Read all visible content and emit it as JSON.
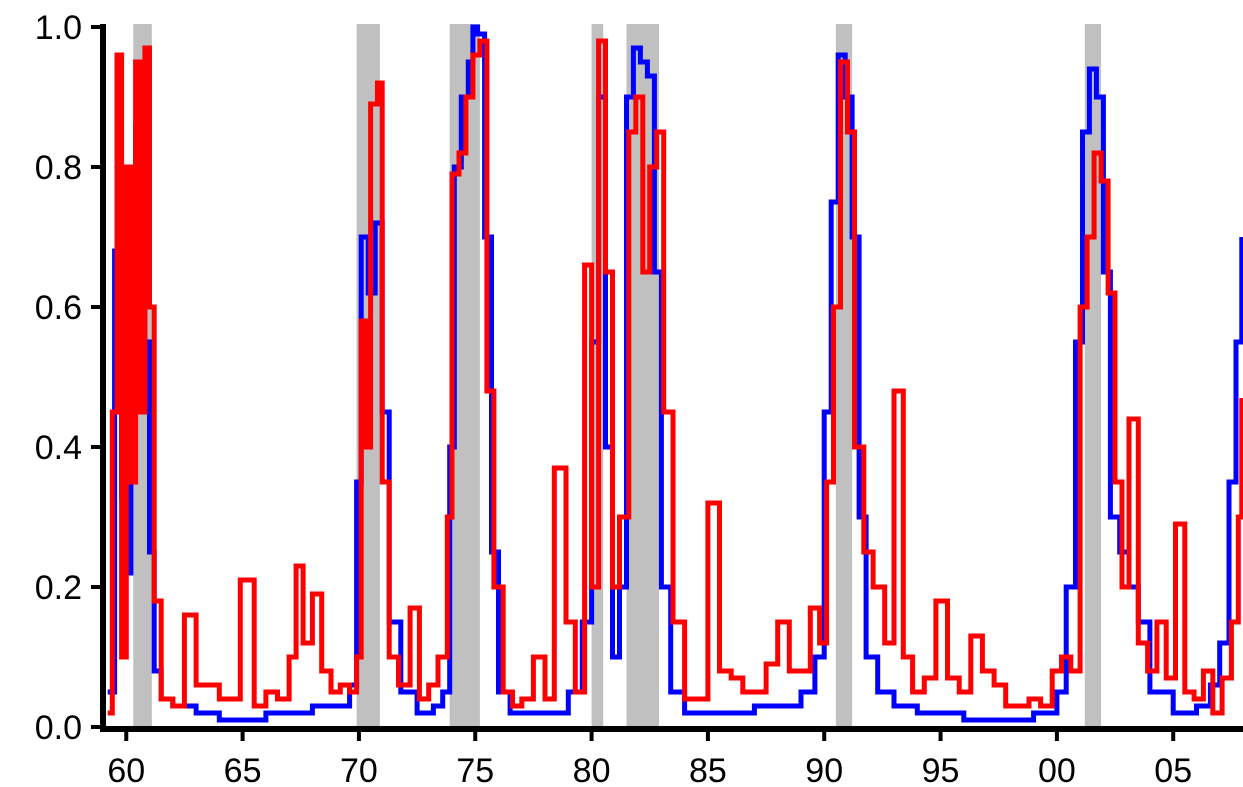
{
  "chart_data": {
    "type": "line",
    "title": "",
    "xlabel": "",
    "ylabel": "",
    "xlim": [
      1959,
      2008
    ],
    "ylim": [
      0,
      1.0
    ],
    "grid": false,
    "legend": "none",
    "x_ticks": [
      {
        "value": 1960,
        "label": "60"
      },
      {
        "value": 1965,
        "label": "65"
      },
      {
        "value": 1970,
        "label": "70"
      },
      {
        "value": 1975,
        "label": "75"
      },
      {
        "value": 1980,
        "label": "80"
      },
      {
        "value": 1985,
        "label": "85"
      },
      {
        "value": 1990,
        "label": "90"
      },
      {
        "value": 1995,
        "label": "95"
      },
      {
        "value": 2000,
        "label": "00"
      },
      {
        "value": 2005,
        "label": "05"
      }
    ],
    "y_ticks": [
      {
        "value": 0.0,
        "label": "0.0"
      },
      {
        "value": 0.2,
        "label": "0.2"
      },
      {
        "value": 0.4,
        "label": "0.4"
      },
      {
        "value": 0.6,
        "label": "0.6"
      },
      {
        "value": 0.8,
        "label": "0.8"
      },
      {
        "value": 1.0,
        "label": "1.0"
      }
    ],
    "shaded_periods": [
      {
        "start": 1960.3,
        "end": 1961.1
      },
      {
        "start": 1969.9,
        "end": 1970.9
      },
      {
        "start": 1973.9,
        "end": 1975.2
      },
      {
        "start": 1980.0,
        "end": 1980.5
      },
      {
        "start": 1981.5,
        "end": 1982.9
      },
      {
        "start": 1990.5,
        "end": 1991.2
      },
      {
        "start": 2001.2,
        "end": 2001.9
      }
    ],
    "series": [
      {
        "color": "#0000ff",
        "x": [
          1959.2,
          1959.5,
          1959.8,
          1960.0,
          1960.2,
          1960.4,
          1960.6,
          1960.8,
          1961.0,
          1961.2,
          1961.5,
          1962,
          1963,
          1964,
          1965,
          1966,
          1967,
          1968,
          1969,
          1969.6,
          1969.9,
          1970.1,
          1970.4,
          1970.7,
          1971.0,
          1971.3,
          1971.8,
          1972.5,
          1973.2,
          1973.6,
          1973.9,
          1974.1,
          1974.4,
          1974.7,
          1974.9,
          1975.1,
          1975.4,
          1975.7,
          1976.0,
          1976.5,
          1977,
          1978,
          1979,
          1979.6,
          1980.0,
          1980.3,
          1980.6,
          1980.9,
          1981.2,
          1981.5,
          1981.8,
          1982.1,
          1982.4,
          1982.7,
          1983.0,
          1983.4,
          1984,
          1985,
          1986,
          1987,
          1988,
          1989,
          1989.6,
          1990.0,
          1990.3,
          1990.6,
          1990.9,
          1991.2,
          1991.5,
          1991.8,
          1992.3,
          1993,
          1994,
          1995,
          1996,
          1997,
          1998,
          1999,
          2000,
          2000.4,
          2000.8,
          2001.1,
          2001.4,
          2001.7,
          2002.0,
          2002.3,
          2002.7,
          2003.1,
          2003.5,
          2004,
          2005,
          2006,
          2006.6,
          2007,
          2007.4,
          2007.7,
          2007.95
        ],
        "values": [
          0.05,
          0.68,
          0.33,
          0.22,
          0.55,
          0.86,
          0.91,
          0.55,
          0.25,
          0.08,
          0.04,
          0.03,
          0.02,
          0.01,
          0.01,
          0.02,
          0.02,
          0.03,
          0.03,
          0.06,
          0.35,
          0.7,
          0.62,
          0.72,
          0.45,
          0.15,
          0.05,
          0.02,
          0.03,
          0.05,
          0.4,
          0.8,
          0.9,
          0.95,
          1.0,
          0.99,
          0.7,
          0.25,
          0.05,
          0.02,
          0.02,
          0.02,
          0.05,
          0.15,
          0.55,
          0.9,
          0.4,
          0.1,
          0.2,
          0.9,
          0.97,
          0.95,
          0.93,
          0.65,
          0.2,
          0.05,
          0.02,
          0.02,
          0.02,
          0.03,
          0.03,
          0.05,
          0.1,
          0.45,
          0.75,
          0.96,
          0.9,
          0.7,
          0.3,
          0.1,
          0.05,
          0.03,
          0.02,
          0.02,
          0.01,
          0.01,
          0.01,
          0.02,
          0.05,
          0.2,
          0.55,
          0.85,
          0.94,
          0.9,
          0.65,
          0.3,
          0.25,
          0.2,
          0.15,
          0.05,
          0.02,
          0.03,
          0.06,
          0.12,
          0.35,
          0.55,
          0.7
        ]
      },
      {
        "color": "#ff0000",
        "x": [
          1959.2,
          1959.4,
          1959.6,
          1959.8,
          1960.0,
          1960.2,
          1960.4,
          1960.6,
          1960.8,
          1961.0,
          1961.2,
          1961.5,
          1962.0,
          1962.5,
          1963,
          1964,
          1964.9,
          1965.5,
          1966,
          1966.5,
          1967.0,
          1967.3,
          1967.6,
          1968.0,
          1968.4,
          1968.8,
          1969.2,
          1969.6,
          1969.9,
          1970.1,
          1970.3,
          1970.5,
          1970.8,
          1971.0,
          1971.3,
          1971.7,
          1972.2,
          1972.6,
          1973.0,
          1973.4,
          1973.8,
          1974.0,
          1974.3,
          1974.6,
          1974.9,
          1975.2,
          1975.5,
          1975.8,
          1976.2,
          1976.6,
          1977.0,
          1977.5,
          1978.0,
          1978.4,
          1978.9,
          1979.3,
          1979.7,
          1980.0,
          1980.3,
          1980.6,
          1980.9,
          1981.2,
          1981.6,
          1981.9,
          1982.2,
          1982.5,
          1982.8,
          1983.1,
          1983.5,
          1984,
          1985.0,
          1985.5,
          1986,
          1986.5,
          1987,
          1987.5,
          1988,
          1988.5,
          1989.0,
          1989.4,
          1989.8,
          1990.1,
          1990.4,
          1990.7,
          1991.0,
          1991.3,
          1991.7,
          1992.1,
          1992.6,
          1993.0,
          1993.4,
          1993.8,
          1994.3,
          1994.8,
          1995.3,
          1995.8,
          1996.3,
          1996.8,
          1997.3,
          1997.8,
          1998.3,
          1998.8,
          1999.3,
          1999.8,
          2000.2,
          2000.6,
          2001.0,
          2001.3,
          2001.6,
          2001.9,
          2002.2,
          2002.5,
          2002.8,
          2003.1,
          2003.5,
          2003.9,
          2004.3,
          2004.7,
          2005.1,
          2005.5,
          2005.9,
          2006.3,
          2006.7,
          2007.1,
          2007.5,
          2007.8,
          2007.95
        ],
        "values": [
          0.02,
          0.45,
          0.96,
          0.1,
          0.8,
          0.35,
          0.95,
          0.45,
          0.97,
          0.6,
          0.18,
          0.04,
          0.03,
          0.16,
          0.06,
          0.04,
          0.21,
          0.03,
          0.05,
          0.04,
          0.1,
          0.23,
          0.12,
          0.19,
          0.08,
          0.05,
          0.06,
          0.05,
          0.1,
          0.58,
          0.4,
          0.89,
          0.92,
          0.35,
          0.1,
          0.06,
          0.17,
          0.04,
          0.06,
          0.1,
          0.3,
          0.79,
          0.82,
          0.9,
          0.96,
          0.98,
          0.48,
          0.2,
          0.05,
          0.03,
          0.04,
          0.1,
          0.04,
          0.37,
          0.15,
          0.05,
          0.66,
          0.2,
          0.98,
          0.65,
          0.2,
          0.3,
          0.85,
          0.9,
          0.65,
          0.8,
          0.85,
          0.45,
          0.15,
          0.04,
          0.32,
          0.08,
          0.07,
          0.05,
          0.05,
          0.09,
          0.15,
          0.08,
          0.08,
          0.17,
          0.12,
          0.35,
          0.6,
          0.95,
          0.85,
          0.4,
          0.25,
          0.2,
          0.12,
          0.48,
          0.1,
          0.05,
          0.07,
          0.18,
          0.07,
          0.05,
          0.13,
          0.08,
          0.06,
          0.03,
          0.03,
          0.04,
          0.03,
          0.08,
          0.1,
          0.08,
          0.6,
          0.7,
          0.82,
          0.78,
          0.62,
          0.35,
          0.2,
          0.44,
          0.12,
          0.08,
          0.15,
          0.07,
          0.29,
          0.05,
          0.04,
          0.08,
          0.02,
          0.07,
          0.15,
          0.3,
          0.47
        ]
      }
    ]
  }
}
